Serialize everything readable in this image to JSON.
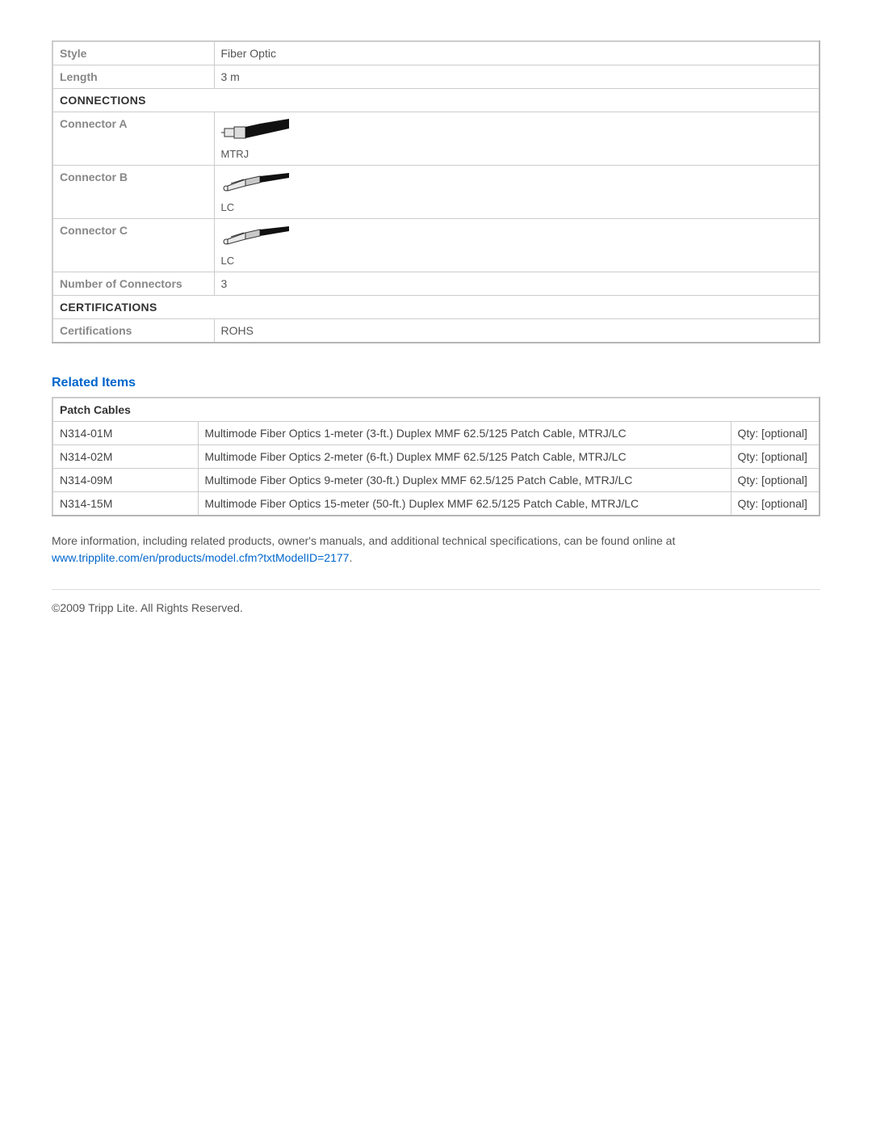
{
  "specs": {
    "rows": [
      {
        "label": "Style",
        "value": "Fiber Optic"
      },
      {
        "label": "Length",
        "value": "3 m"
      }
    ],
    "connections_header": "CONNECTIONS",
    "connectors": [
      {
        "label": "Connector A",
        "tag": "MTRJ",
        "icon": "mtrj"
      },
      {
        "label": "Connector B",
        "tag": "LC",
        "icon": "lc"
      },
      {
        "label": "Connector C",
        "tag": "LC",
        "icon": "lc"
      }
    ],
    "num_connectors_label": "Number of Connectors",
    "num_connectors_value": "3",
    "certifications_header": "CERTIFICATIONS",
    "certifications_label": "Certifications",
    "certifications_value": "ROHS"
  },
  "related": {
    "heading": "Related Items",
    "category": "Patch Cables",
    "rows": [
      {
        "sku": "N314-01M",
        "desc": "Multimode Fiber Optics 1-meter (3-ft.) Duplex MMF 62.5/125 Patch Cable, MTRJ/LC",
        "qty": "Qty: [optional]"
      },
      {
        "sku": "N314-02M",
        "desc": "Multimode Fiber Optics 2-meter (6-ft.) Duplex MMF 62.5/125 Patch Cable, MTRJ/LC",
        "qty": "Qty: [optional]"
      },
      {
        "sku": "N314-09M",
        "desc": "Multimode Fiber Optics 9-meter (30-ft.) Duplex MMF 62.5/125 Patch Cable, MTRJ/LC",
        "qty": "Qty: [optional]"
      },
      {
        "sku": "N314-15M",
        "desc": "Multimode Fiber Optics 15-meter (50-ft.) Duplex MMF 62.5/125 Patch Cable, MTRJ/LC",
        "qty": "Qty: [optional]"
      }
    ]
  },
  "more_info_text": "More information, including related products, owner's manuals, and additional technical specifications, can be found online at",
  "product_link_text": "www.tripplite.com/en/products/model.cfm?txtModelID=2177",
  "copyright": "©2009 Tripp Lite.  All Rights Reserved."
}
